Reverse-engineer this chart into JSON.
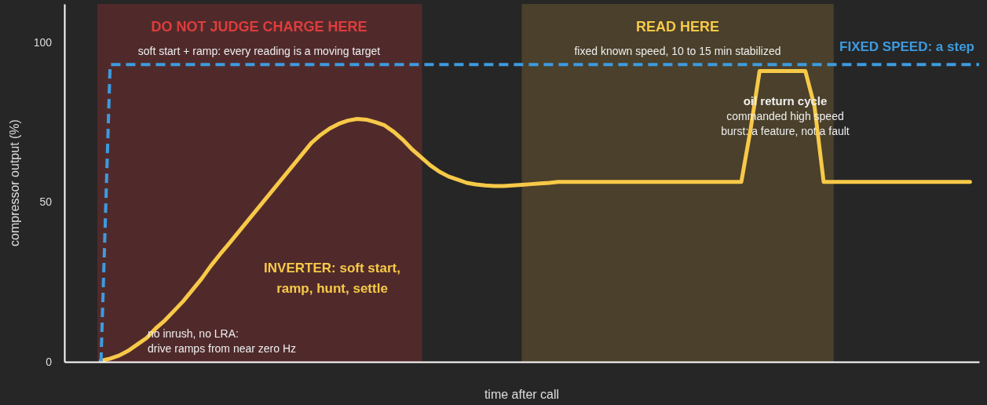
{
  "chart_data": {
    "type": "line",
    "xlabel": "time after call",
    "ylabel": "compressor output (%)",
    "categories": [
      null,
      null,
      null,
      null,
      null,
      null,
      null,
      null,
      null,
      null,
      null,
      null,
      null,
      null,
      null,
      null,
      null,
      null,
      null,
      null,
      null,
      null,
      null,
      null,
      null,
      null,
      null,
      null,
      null,
      null,
      null,
      null,
      null,
      null,
      null,
      null,
      null,
      null,
      null,
      null,
      null,
      null,
      null,
      null,
      null,
      null,
      null,
      null,
      null,
      null,
      null,
      null,
      null,
      null,
      null,
      null,
      null,
      null,
      null,
      null,
      null,
      null,
      null,
      null,
      null,
      null,
      null,
      null,
      null,
      null,
      null,
      null,
      null,
      null,
      null,
      null,
      null,
      null,
      null,
      null,
      null,
      null,
      null,
      null,
      null,
      null,
      null,
      null,
      null,
      null,
      null,
      null,
      null,
      null,
      null,
      null,
      null,
      null,
      null,
      null,
      null
    ],
    "ylim": [
      0,
      112
    ],
    "yticks": [
      0,
      50,
      100
    ],
    "grid": false,
    "marker": "none",
    "series": [
      {
        "name": "INVERTER: soft start, ramp, hunt, settle",
        "color": "#f7c948",
        "line_style": "solid",
        "values": [
          null,
          null,
          null,
          null,
          0.3,
          1,
          2,
          3.5,
          5.5,
          7.5,
          10.5,
          13,
          16,
          19,
          22.5,
          26,
          30,
          33.6,
          37,
          40.5,
          44,
          47.5,
          51,
          54.5,
          58,
          61.5,
          65,
          68.5,
          71,
          73,
          74.5,
          75.5,
          76,
          75.8,
          75,
          74,
          72,
          69.5,
          66.5,
          64,
          61.5,
          59.5,
          58,
          57,
          56,
          55.5,
          55.2,
          55,
          55,
          55.2,
          55.4,
          55.6,
          55.8,
          56,
          56.3,
          56.3,
          56.3,
          56.3,
          56.3,
          56.3,
          56.3,
          56.3,
          56.3,
          56.3,
          56.3,
          56.3,
          56.3,
          56.3,
          56.3,
          56.3,
          56.3,
          56.3,
          56.3,
          56.3,
          56.3,
          72.5,
          91,
          91,
          91,
          91,
          91,
          91,
          80,
          56.3,
          56.3,
          56.3,
          56.3,
          56.3,
          56.3,
          56.3,
          56.3,
          56.3,
          56.3,
          56.3,
          56.3,
          56.3,
          56.3,
          56.3,
          56.3,
          56.3,
          null
        ]
      },
      {
        "name": "FIXED SPEED: a step",
        "color": "#3d9be0",
        "line_style": "dashed",
        "values": [
          null,
          null,
          null,
          null,
          0,
          93,
          93,
          93,
          93,
          93,
          93,
          93,
          93,
          93,
          93,
          93,
          93,
          93,
          93,
          93,
          93,
          93,
          93,
          93,
          93,
          93,
          93,
          93,
          93,
          93,
          93,
          93,
          93,
          93,
          93,
          93,
          93,
          93,
          93,
          93,
          93,
          93,
          93,
          93,
          93,
          93,
          93,
          93,
          93,
          93,
          93,
          93,
          93,
          93,
          93,
          93,
          93,
          93,
          93,
          93,
          93,
          93,
          93,
          93,
          93,
          93,
          93,
          93,
          93,
          93,
          93,
          93,
          93,
          93,
          93,
          93,
          93,
          93,
          93,
          93,
          93,
          93,
          93,
          93,
          93,
          93,
          93,
          93,
          93,
          93,
          93,
          93,
          93,
          93,
          93,
          93,
          93,
          93,
          93,
          93,
          93
        ]
      }
    ],
    "annotations": [
      "DO NOT JUDGE CHARGE HERE",
      "soft start + ramp: every reading is a moving target",
      "READ HERE",
      "fixed known speed, 10 to 15 min stabilized",
      "oil return cycle\ncommanded high speed\nburst: a feature, not a fault",
      "no inrush, no LRA:\ndrive ramps from near zero Hz"
    ]
  }
}
